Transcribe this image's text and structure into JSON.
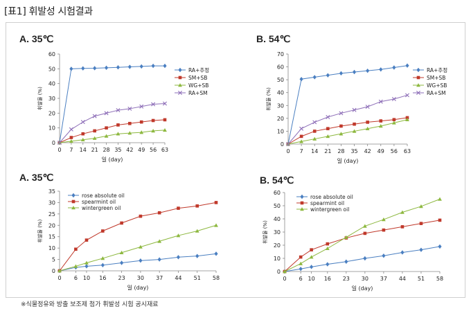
{
  "page_title": "[표1] 휘발성 시험결과",
  "footer": "※식물정유와 방출 보조제 첨가 휘발성 시험 공시재료",
  "chart_data": [
    {
      "id": "A1",
      "type": "line",
      "panel_title": "A.  35℃",
      "xlabel": "일 (day)",
      "ylabel": "휘발율 (%)",
      "x": [
        0,
        7,
        14,
        21,
        28,
        35,
        42,
        49,
        56,
        63
      ],
      "ylim": [
        0,
        60
      ],
      "yticks": [
        0,
        10,
        20,
        30,
        40,
        50,
        60
      ],
      "legend_position": "right",
      "series": [
        {
          "name": "RA+추정",
          "color": "#4a7fc1",
          "marker": "diamond",
          "values": [
            0,
            50,
            50.3,
            50.4,
            50.7,
            51,
            51.3,
            51.6,
            52,
            52
          ]
        },
        {
          "name": "SM+SB",
          "color": "#c0392b",
          "marker": "square",
          "values": [
            0,
            3.5,
            6,
            8,
            10,
            12,
            13,
            14,
            15,
            15.5
          ]
        },
        {
          "name": "WG+SB",
          "color": "#8db83f",
          "marker": "triangle",
          "values": [
            0,
            1,
            2,
            3,
            4.5,
            6,
            6.5,
            7,
            8,
            8.5
          ]
        },
        {
          "name": "RA+SM",
          "color": "#8e6fb8",
          "marker": "x",
          "values": [
            0,
            9,
            14,
            18,
            20,
            22,
            23,
            24.5,
            26,
            26.5
          ]
        }
      ]
    },
    {
      "id": "B1",
      "type": "line",
      "panel_title": "B.  54℃",
      "xlabel": "일 (day)",
      "ylabel": "휘발율 (%)",
      "x": [
        0,
        7,
        14,
        21,
        28,
        35,
        42,
        49,
        56,
        63
      ],
      "ylim": [
        0,
        70
      ],
      "yticks": [
        0,
        10,
        20,
        30,
        40,
        50,
        60,
        70
      ],
      "legend_position": "right",
      "series": [
        {
          "name": "RA+추정",
          "color": "#4a7fc1",
          "marker": "diamond",
          "values": [
            0,
            50.5,
            52,
            53.5,
            55,
            56,
            57,
            58,
            59.5,
            61
          ]
        },
        {
          "name": "SM+SB",
          "color": "#c0392b",
          "marker": "square",
          "values": [
            0,
            6,
            10,
            12,
            14,
            15.5,
            17,
            18,
            19,
            20.5
          ]
        },
        {
          "name": "WG+SB",
          "color": "#8db83f",
          "marker": "triangle",
          "values": [
            0,
            2,
            4,
            6,
            8,
            10,
            12,
            14,
            16.5,
            19
          ]
        },
        {
          "name": "RA+SM",
          "color": "#8e6fb8",
          "marker": "x",
          "values": [
            0,
            12,
            17,
            21,
            24,
            26.5,
            29,
            33,
            35,
            38
          ]
        }
      ]
    },
    {
      "id": "A2",
      "type": "line",
      "panel_title": "A.  35℃",
      "xlabel": "일 (day)",
      "ylabel": "휘발율 (%)",
      "x": [
        0,
        6,
        10,
        16,
        23,
        30,
        37,
        44,
        51,
        58
      ],
      "ylim": [
        0,
        35
      ],
      "yticks": [
        0,
        5,
        10,
        15,
        20,
        25,
        30,
        35
      ],
      "legend_position": "top-left",
      "series": [
        {
          "name": "rose absolute oil",
          "color": "#4a7fc1",
          "marker": "diamond",
          "values": [
            0,
            1.5,
            2,
            2.5,
            3.5,
            4.5,
            5,
            6,
            6.5,
            7.5
          ]
        },
        {
          "name": "spearmint oil",
          "color": "#c0392b",
          "marker": "square",
          "values": [
            0,
            9.5,
            13.5,
            17.5,
            21,
            24,
            25.5,
            27.5,
            28.5,
            30
          ]
        },
        {
          "name": "wintergreen oil",
          "color": "#8db83f",
          "marker": "triangle",
          "values": [
            0,
            2,
            3.5,
            5.5,
            8,
            10.5,
            13,
            15.5,
            17.5,
            20
          ]
        }
      ]
    },
    {
      "id": "B2",
      "type": "line",
      "panel_title": "B.  54℃",
      "xlabel": "일 (day)",
      "ylabel": "휘발율 (%)",
      "x": [
        0,
        6,
        10,
        16,
        23,
        30,
        37,
        44,
        51,
        58
      ],
      "ylim": [
        0,
        60
      ],
      "yticks": [
        0,
        10,
        20,
        30,
        40,
        50,
        60
      ],
      "legend_position": "top-left",
      "series": [
        {
          "name": "rose absolute oil",
          "color": "#4a7fc1",
          "marker": "diamond",
          "values": [
            0,
            2,
            3.5,
            5.5,
            7.5,
            10,
            12,
            14.5,
            16.5,
            19
          ]
        },
        {
          "name": "spearmint oil",
          "color": "#c0392b",
          "marker": "square",
          "values": [
            0,
            11,
            16.5,
            21,
            25.5,
            29,
            31.5,
            34,
            36.5,
            39
          ]
        },
        {
          "name": "wintergreen oil",
          "color": "#8db83f",
          "marker": "triangle",
          "values": [
            0,
            6,
            11,
            17.5,
            26,
            34.5,
            39.5,
            45,
            49.5,
            55
          ]
        }
      ]
    }
  ]
}
